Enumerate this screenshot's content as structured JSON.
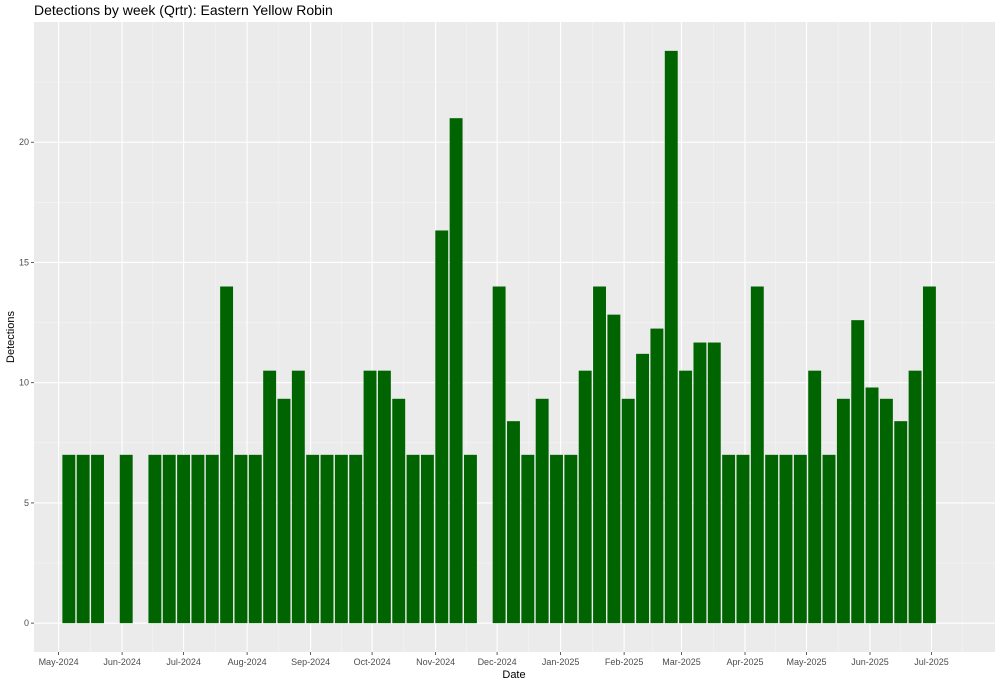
{
  "chart_data": {
    "type": "bar",
    "title": "Detections by week (Qrtr): Eastern Yellow Robin",
    "xlabel": "Date",
    "ylabel": "Detections",
    "x": [
      "2024-05-06",
      "2024-05-13",
      "2024-05-20",
      "2024-05-27",
      "2024-06-03",
      "2024-06-10",
      "2024-06-17",
      "2024-06-24",
      "2024-07-01",
      "2024-07-08",
      "2024-07-15",
      "2024-07-22",
      "2024-07-29",
      "2024-08-05",
      "2024-08-12",
      "2024-08-19",
      "2024-08-26",
      "2024-09-02",
      "2024-09-09",
      "2024-09-16",
      "2024-09-23",
      "2024-09-30",
      "2024-10-07",
      "2024-10-14",
      "2024-10-21",
      "2024-10-28",
      "2024-11-04",
      "2024-11-11",
      "2024-11-18",
      "2024-11-25",
      "2024-12-02",
      "2024-12-09",
      "2024-12-16",
      "2024-12-23",
      "2024-12-30",
      "2025-01-06",
      "2025-01-13",
      "2025-01-20",
      "2025-01-27",
      "2025-02-03",
      "2025-02-10",
      "2025-02-17",
      "2025-02-24",
      "2025-03-03",
      "2025-03-10",
      "2025-03-17",
      "2025-03-24",
      "2025-03-31",
      "2025-04-07",
      "2025-04-14",
      "2025-04-21",
      "2025-04-28",
      "2025-05-05",
      "2025-05-12",
      "2025-05-19",
      "2025-05-26",
      "2025-06-02",
      "2025-06-09",
      "2025-06-16",
      "2025-06-23",
      "2025-06-30"
    ],
    "values": [
      7,
      7,
      7,
      0,
      7,
      0,
      7,
      7,
      7,
      7,
      7,
      14,
      7,
      7,
      10.5,
      9.33,
      10.5,
      7,
      7,
      7,
      7,
      10.5,
      10.5,
      9.33,
      7,
      7,
      16.33,
      21,
      7,
      0,
      14,
      8.4,
      7,
      9.33,
      7,
      7,
      10.5,
      14,
      12.83,
      9.33,
      11.2,
      12.25,
      23.8,
      10.5,
      11.67,
      11.67,
      7,
      7,
      14,
      7,
      7,
      7,
      10.5,
      7,
      9.33,
      12.6,
      9.8,
      9.33,
      8.4,
      10.5,
      14
    ],
    "x_ticks": [
      "May-2024",
      "Jun-2024",
      "Jul-2024",
      "Aug-2024",
      "Sep-2024",
      "Oct-2024",
      "Nov-2024",
      "Dec-2024",
      "Jan-2025",
      "Feb-2025",
      "Mar-2025",
      "Apr-2025",
      "May-2025",
      "Jun-2025",
      "Jul-2025"
    ],
    "x_tick_dates": [
      "2024-05-01",
      "2024-06-01",
      "2024-07-01",
      "2024-08-01",
      "2024-09-01",
      "2024-10-01",
      "2024-11-01",
      "2024-12-01",
      "2025-01-01",
      "2025-02-01",
      "2025-03-01",
      "2025-04-01",
      "2025-05-01",
      "2025-06-01",
      "2025-07-01"
    ],
    "y_ticks": [
      "0",
      "5",
      "10",
      "15",
      "20"
    ],
    "y_tick_values": [
      0,
      5,
      10,
      15,
      20
    ],
    "xlim": [
      "2024-04-19",
      "2025-08-01"
    ],
    "ylim": [
      -1.2,
      25
    ],
    "grid": true,
    "legend": "none",
    "colors": {
      "bar": "#006400",
      "panel": "#ebebeb",
      "grid_major": "#ffffff",
      "grid_minor": "#f5f5f5"
    }
  }
}
